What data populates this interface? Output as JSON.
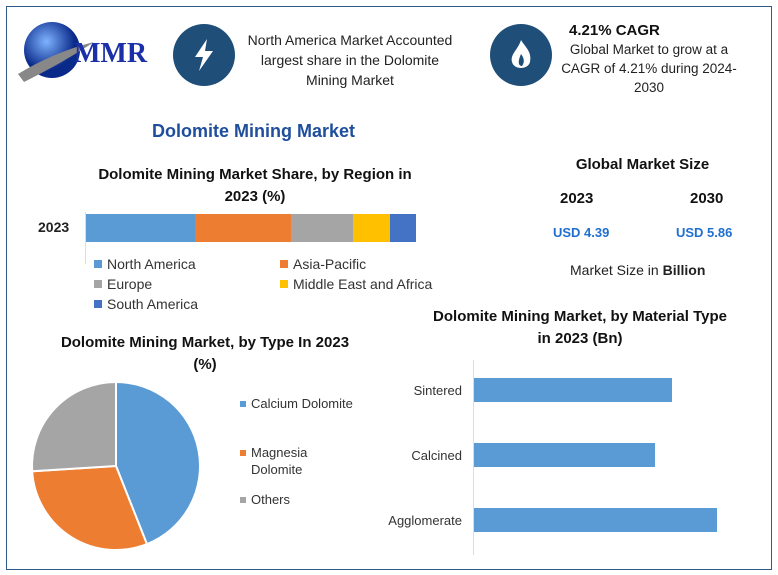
{
  "logo": {
    "text": "MMR"
  },
  "header": {
    "highlight1": "North America Market Accounted largest share in the Dolomite Mining Market",
    "cagr_title": "4.21% CAGR",
    "cagr_text": "Global Market to grow at a CAGR of 4.21% during 2024-2030"
  },
  "main_title": "Dolomite Mining Market",
  "market_size": {
    "title": "Global Market Size",
    "years": [
      "2023",
      "2030"
    ],
    "values": [
      "USD 4.39",
      "USD 5.86"
    ],
    "note_prefix": "Market Size in ",
    "note_unit": "Billion"
  },
  "colors": {
    "primary": "#1f4e79",
    "blue": "#5b9bd5",
    "orange": "#ed7d31",
    "gray": "#a5a5a5",
    "yellow": "#ffc000",
    "darkblue": "#4472c4",
    "value_blue": "#1f6fd1"
  },
  "chart_data": [
    {
      "type": "bar",
      "orientation": "horizontal",
      "stacked": true,
      "title": "Dolomite Mining Market Share, by Region in 2023 (%)",
      "categories": [
        "2023"
      ],
      "series": [
        {
          "name": "North America",
          "values": [
            33
          ]
        },
        {
          "name": "Asia-Pacific",
          "values": [
            29
          ]
        },
        {
          "name": "Europe",
          "values": [
            19
          ]
        },
        {
          "name": "Middle East and Africa",
          "values": [
            11
          ]
        },
        {
          "name": "South America",
          "values": [
            8
          ]
        }
      ],
      "legend": "bottom"
    },
    {
      "type": "pie",
      "title": "Dolomite Mining Market, by Type In 2023 (%)",
      "labels": [
        "Calcium Dolomite",
        "Magnesia Dolomite",
        "Others"
      ],
      "values": [
        44,
        30,
        26
      ],
      "legend": "right"
    },
    {
      "type": "bar",
      "orientation": "horizontal",
      "title": "Dolomite Mining Market, by  Material Type in 2023 (Bn)",
      "categories": [
        "Sintered",
        "Calcined",
        "Agglomerate"
      ],
      "values": [
        1.4,
        1.28,
        1.72
      ]
    }
  ]
}
